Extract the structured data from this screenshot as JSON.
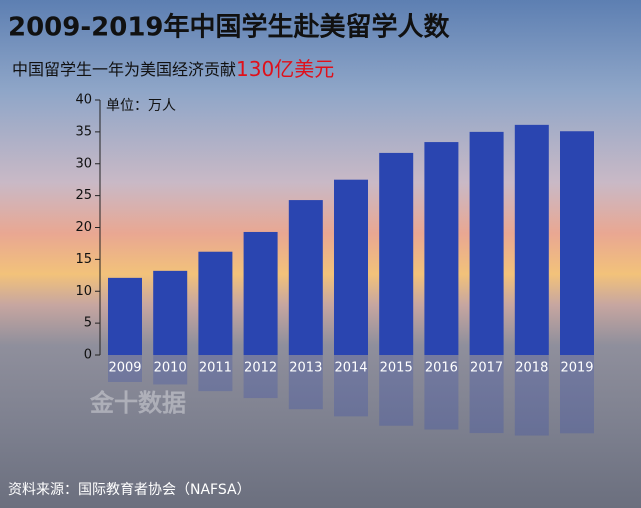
{
  "chart_data": {
    "type": "bar",
    "title": "2009-2019年中国学生赴美留学人数",
    "subtitle": "中国留学生一年为美国经济贡献",
    "subtitle_highlight": "130亿美元",
    "unit_label": "单位：万人",
    "source": "资料来源：国际教育者协会（NAFSA）",
    "watermark": "金十数据",
    "categories": [
      "2009",
      "2010",
      "2011",
      "2012",
      "2013",
      "2014",
      "2015",
      "2016",
      "2017",
      "2018",
      "2019"
    ],
    "values": [
      12.1,
      13.2,
      16.2,
      19.3,
      24.3,
      27.5,
      31.7,
      33.4,
      35.0,
      36.1,
      35.1
    ],
    "color": "#2a45b0",
    "ylim": [
      0,
      40
    ],
    "yticks": [
      0,
      5,
      10,
      15,
      20,
      25,
      30,
      35,
      40
    ]
  }
}
